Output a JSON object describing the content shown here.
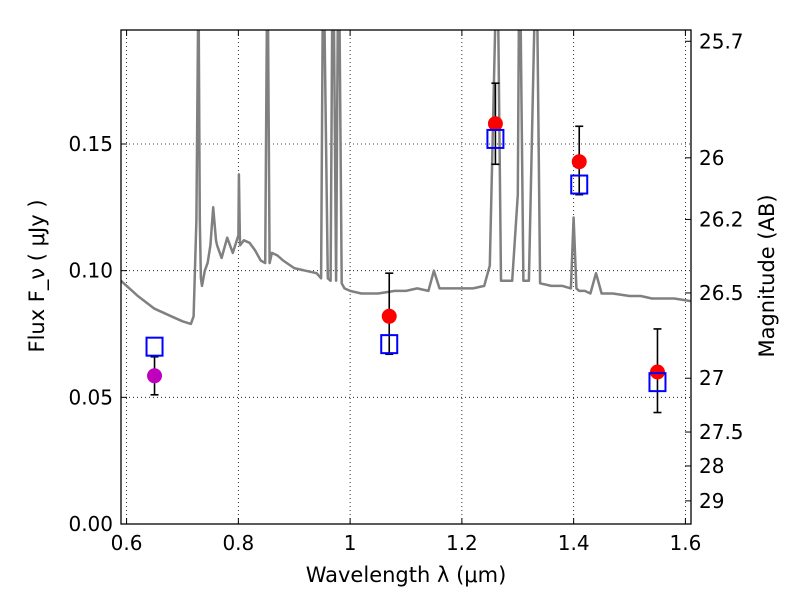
{
  "chart_data": {
    "type": "scatter",
    "xlabel": "Wavelength  λ (μm)",
    "ylabel_left": "Flux  F_ν  ( μJy )",
    "ylabel_right": "Magnitude (AB)",
    "xlim": [
      0.59,
      1.61
    ],
    "ylim": [
      0.0,
      0.195
    ],
    "grid": true,
    "x_ticks": [
      {
        "value": 0.6,
        "label": "0.6"
      },
      {
        "value": 0.8,
        "label": "0.8"
      },
      {
        "value": 1.0,
        "label": "1"
      },
      {
        "value": 1.2,
        "label": "1.2"
      },
      {
        "value": 1.4,
        "label": "1.4"
      },
      {
        "value": 1.6,
        "label": "1.6"
      }
    ],
    "y_ticks_left": [
      {
        "value": 0.0,
        "label": "0.00"
      },
      {
        "value": 0.05,
        "label": "0.05"
      },
      {
        "value": 0.1,
        "label": "0.10"
      },
      {
        "value": 0.15,
        "label": "0.15"
      }
    ],
    "y_ticks_right": [
      {
        "mag": 25.7,
        "label": "25.7"
      },
      {
        "mag": 26.0,
        "label": "26"
      },
      {
        "mag": 26.2,
        "label": "26.2"
      },
      {
        "mag": 26.5,
        "label": "26.5"
      },
      {
        "mag": 27.0,
        "label": "27"
      },
      {
        "mag": 27.5,
        "label": "27.5"
      },
      {
        "mag": 28.0,
        "label": "28"
      },
      {
        "mag": 29.0,
        "label": "29"
      }
    ],
    "series": [
      {
        "kind": "line",
        "color": "#808080",
        "x": [
          0.59,
          0.62,
          0.65,
          0.68,
          0.7,
          0.715,
          0.72,
          0.725,
          0.728,
          0.729,
          0.731,
          0.733,
          0.735,
          0.74,
          0.745,
          0.75,
          0.755,
          0.76,
          0.762,
          0.77,
          0.78,
          0.79,
          0.8,
          0.801,
          0.803,
          0.81,
          0.82,
          0.83,
          0.84,
          0.848,
          0.851,
          0.853,
          0.856,
          0.86,
          0.87,
          0.88,
          0.9,
          0.92,
          0.94,
          0.948,
          0.951,
          0.954,
          0.96,
          0.965,
          0.968,
          0.971,
          0.975,
          0.978,
          0.981,
          0.985,
          0.99,
          1.0,
          1.02,
          1.05,
          1.08,
          1.1,
          1.12,
          1.14,
          1.15,
          1.16,
          1.18,
          1.2,
          1.22,
          1.24,
          1.25,
          1.26,
          1.262,
          1.265,
          1.27,
          1.28,
          1.29,
          1.3,
          1.302,
          1.305,
          1.31,
          1.32,
          1.33,
          1.335,
          1.34,
          1.36,
          1.38,
          1.395,
          1.4,
          1.405,
          1.41,
          1.42,
          1.43,
          1.44,
          1.45,
          1.47,
          1.5,
          1.52,
          1.54,
          1.56,
          1.58,
          1.61
        ],
        "y": [
          0.096,
          0.09,
          0.085,
          0.082,
          0.08,
          0.079,
          0.082,
          0.12,
          0.2,
          0.2,
          0.12,
          0.097,
          0.094,
          0.1,
          0.103,
          0.11,
          0.125,
          0.112,
          0.11,
          0.105,
          0.113,
          0.107,
          0.114,
          0.138,
          0.11,
          0.112,
          0.111,
          0.108,
          0.104,
          0.103,
          0.2,
          0.2,
          0.103,
          0.107,
          0.106,
          0.104,
          0.101,
          0.1,
          0.099,
          0.097,
          0.2,
          0.2,
          0.097,
          0.096,
          0.2,
          0.2,
          0.096,
          0.2,
          0.2,
          0.095,
          0.093,
          0.092,
          0.091,
          0.091,
          0.092,
          0.092,
          0.093,
          0.092,
          0.1,
          0.093,
          0.093,
          0.093,
          0.093,
          0.094,
          0.102,
          0.2,
          0.2,
          0.2,
          0.096,
          0.096,
          0.096,
          0.13,
          0.2,
          0.2,
          0.096,
          0.096,
          0.2,
          0.2,
          0.095,
          0.094,
          0.094,
          0.093,
          0.121,
          0.093,
          0.092,
          0.092,
          0.091,
          0.099,
          0.091,
          0.091,
          0.09,
          0.09,
          0.089,
          0.089,
          0.089,
          0.088
        ]
      },
      {
        "kind": "points",
        "name": "red-observed",
        "color": "#ff0000",
        "marker": "circle",
        "points": [
          {
            "x": 1.07,
            "y": 0.082,
            "err_low": 0.067,
            "err_high": 0.099
          },
          {
            "x": 1.26,
            "y": 0.158,
            "err_low": 0.142,
            "err_high": 0.174
          },
          {
            "x": 1.41,
            "y": 0.143,
            "err_low": 0.13,
            "err_high": 0.157
          },
          {
            "x": 1.55,
            "y": 0.06,
            "err_low": 0.044,
            "err_high": 0.077
          }
        ]
      },
      {
        "kind": "points",
        "name": "magenta-observed",
        "color": "#bf00bf",
        "marker": "circle",
        "points": [
          {
            "x": 0.65,
            "y": 0.0585,
            "err_low": 0.051,
            "err_high": 0.066
          }
        ]
      },
      {
        "kind": "points",
        "name": "blue-model",
        "color": "#0000ff",
        "marker": "square-open",
        "points": [
          {
            "x": 0.65,
            "y": 0.07
          },
          {
            "x": 1.07,
            "y": 0.071
          },
          {
            "x": 1.26,
            "y": 0.152
          },
          {
            "x": 1.41,
            "y": 0.134
          },
          {
            "x": 1.55,
            "y": 0.056
          }
        ]
      }
    ]
  }
}
